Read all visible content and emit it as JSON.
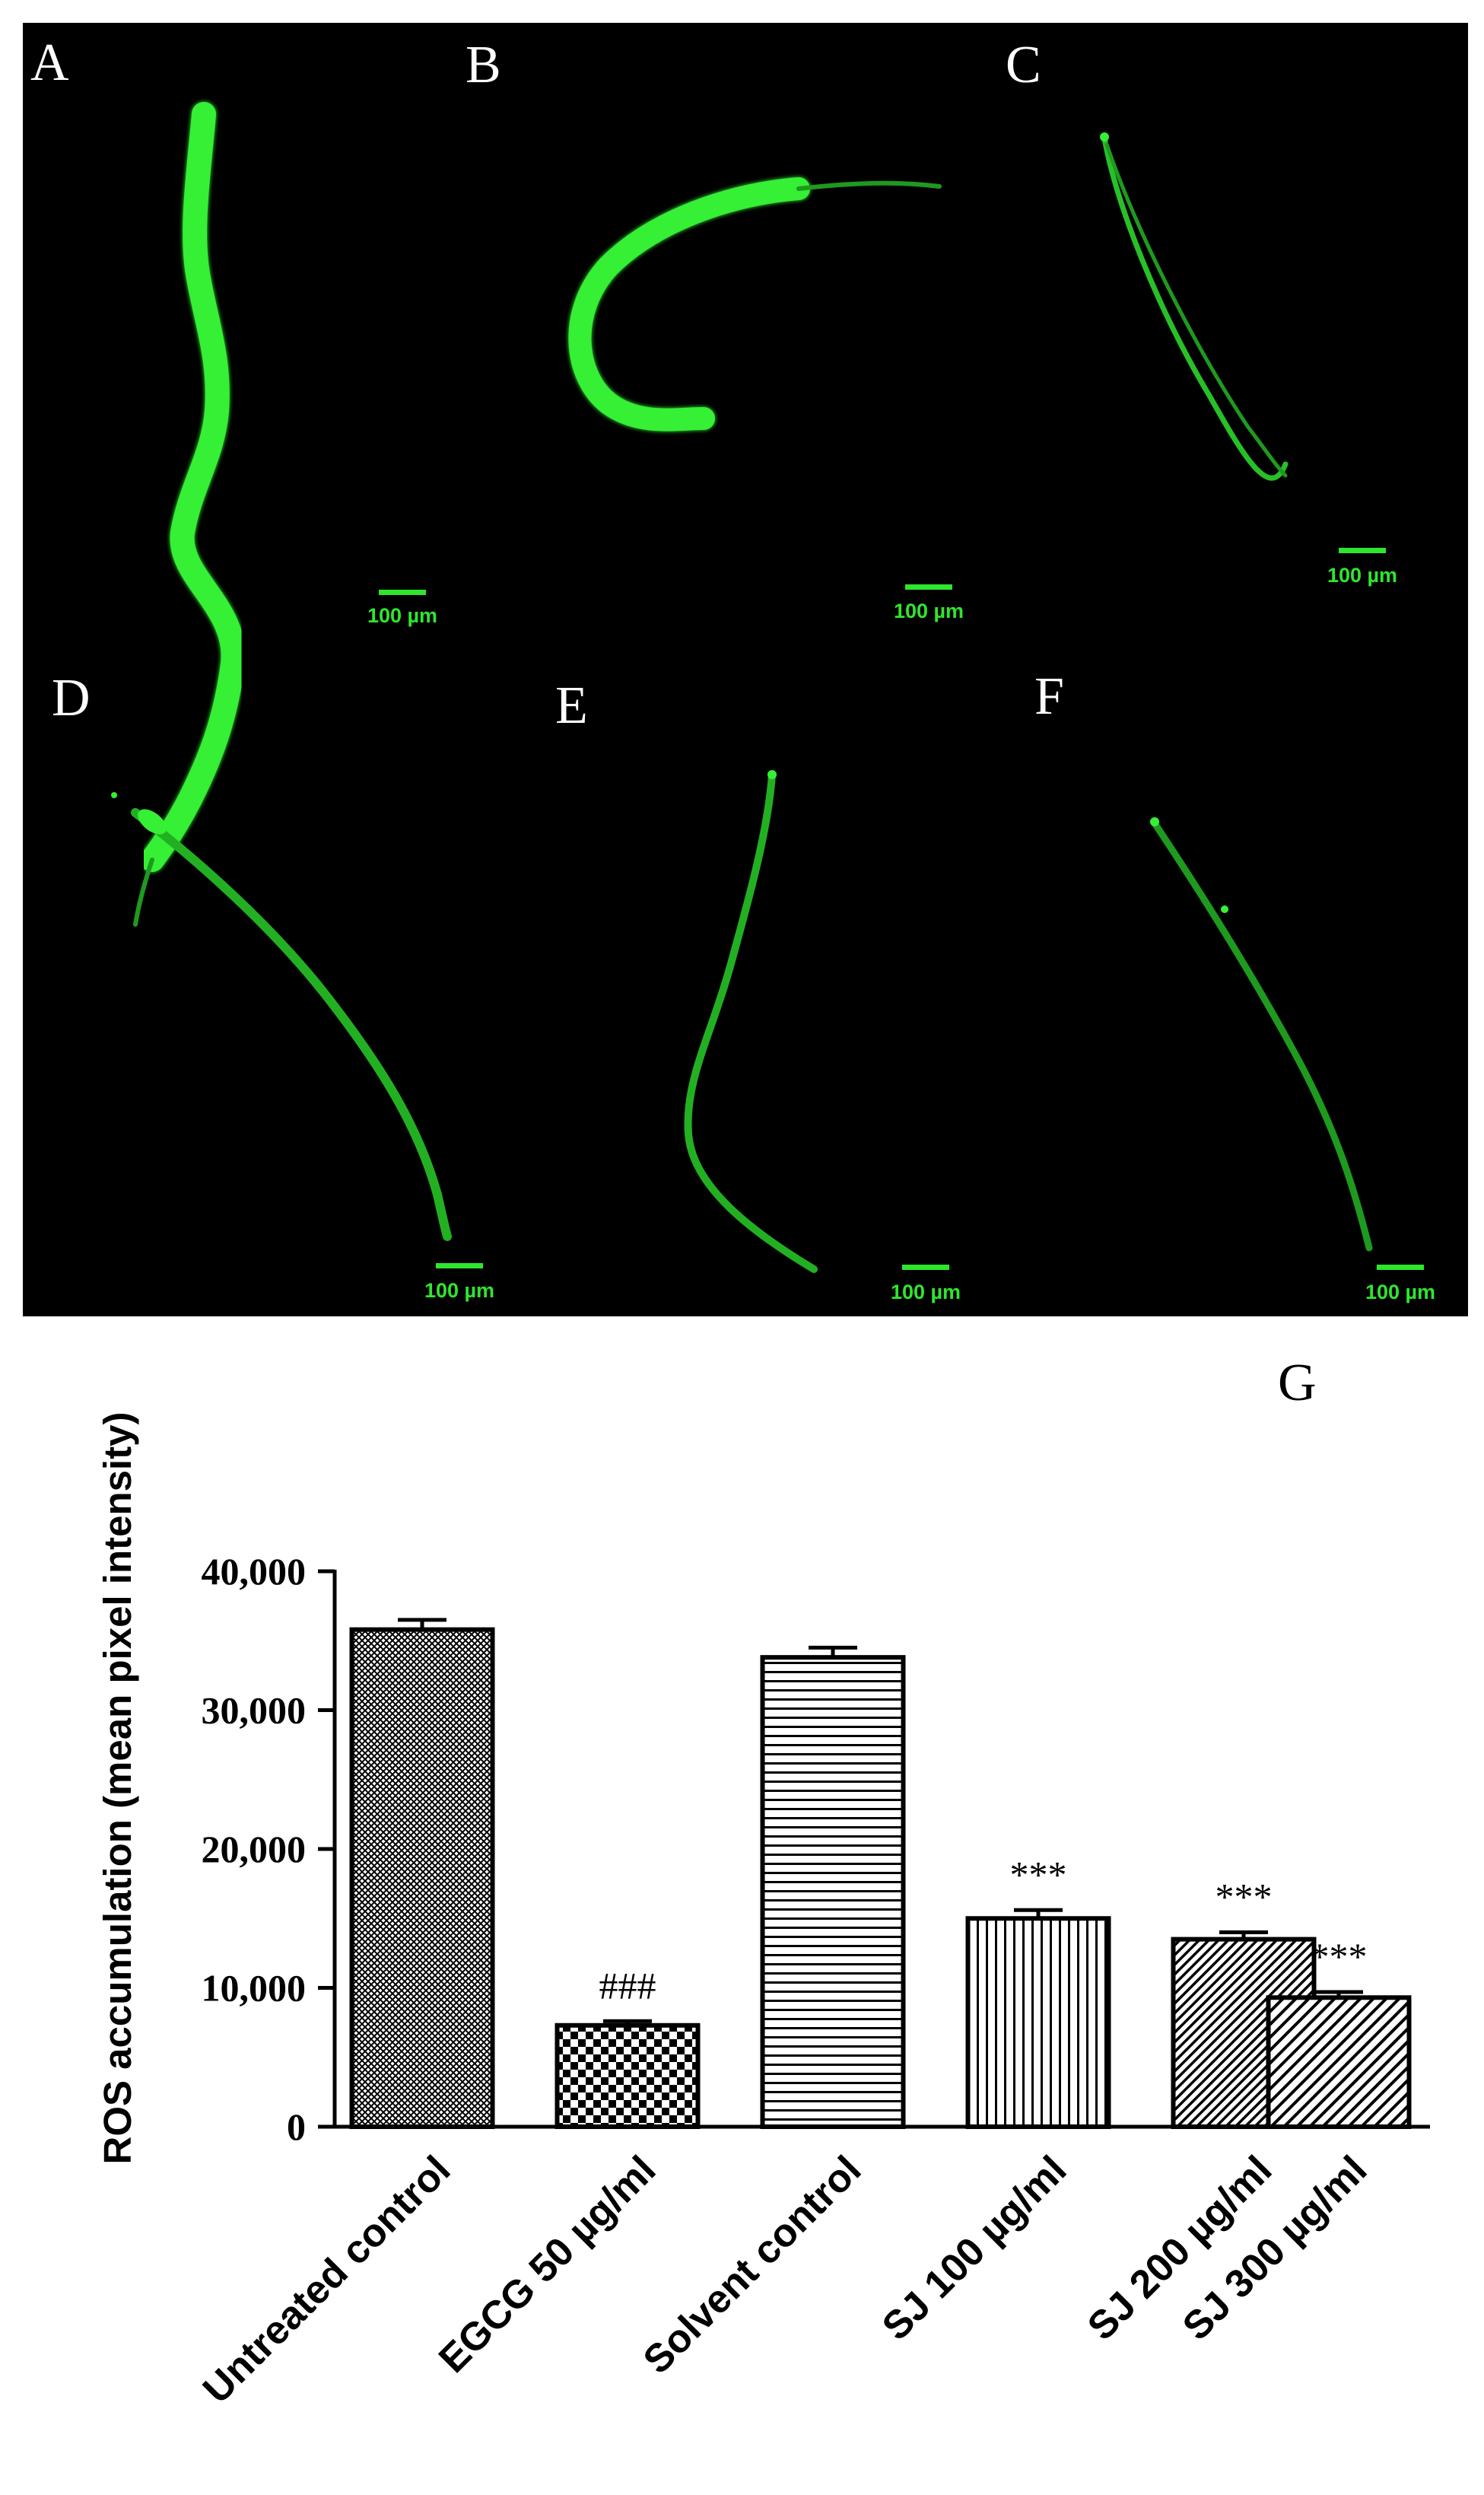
{
  "micrographs": [
    {
      "letter": "A",
      "scale": "100 µm"
    },
    {
      "letter": "B",
      "scale": "100 µm"
    },
    {
      "letter": "C",
      "scale": "100 µm"
    },
    {
      "letter": "D",
      "scale": "100 µm"
    },
    {
      "letter": "E",
      "scale": "100 µm"
    },
    {
      "letter": "F",
      "scale": "100 µm"
    }
  ],
  "colors": {
    "micrograph_background": "#000000",
    "fluorescence": "#2ee62e",
    "bars": "#000000"
  },
  "chart_data": {
    "type": "bar",
    "panel_letter": "G",
    "ylabel": "ROS accumulation (mean pixel intensity)",
    "xlabel": "",
    "ylim": [
      0,
      40000
    ],
    "yticks": [
      0,
      10000,
      20000,
      30000,
      40000
    ],
    "ytick_labels": [
      "0",
      "10,000",
      "20,000",
      "30,000",
      "40,000"
    ],
    "grid": false,
    "categories": [
      "Untreated control",
      "EGCG 50 µg/ml",
      "Solvent control",
      "SJ 100 µg/ml",
      "SJ 200 µg/ml",
      "SJ 300 µg/ml"
    ],
    "values": [
      35800,
      7300,
      33800,
      15000,
      13500,
      9300
    ],
    "errors": [
      700,
      300,
      700,
      600,
      500,
      400
    ],
    "annotations": [
      "",
      "###",
      "",
      "***",
      "***",
      "***"
    ],
    "patterns": [
      "crosshatch-fine",
      "checker",
      "horizontal-lines",
      "vertical-lines",
      "diagonal-fine",
      "diagonal"
    ]
  }
}
